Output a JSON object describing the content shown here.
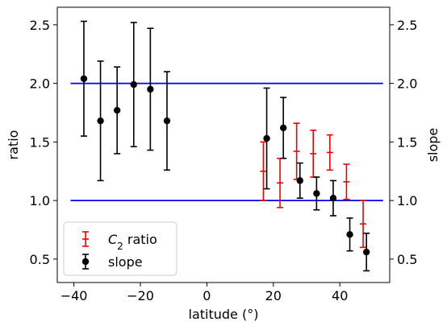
{
  "chart_data": {
    "type": "scatter",
    "xlabel": "latitude (°)",
    "ylabel_left": "ratio",
    "ylabel_right": "slope",
    "xlim": [
      -45,
      55
    ],
    "ylim": [
      0.3,
      2.65
    ],
    "xticks": [
      -40,
      -20,
      0,
      20,
      40
    ],
    "yticks": [
      0.5,
      1.0,
      1.5,
      2.0,
      2.5
    ],
    "xtick_labels": [
      "−40",
      "−20",
      "0",
      "20",
      "40"
    ],
    "ytick_labels": [
      "0.5",
      "1.0",
      "1.5",
      "2.0",
      "2.5"
    ],
    "hlines": [
      {
        "y": 1.0,
        "color": "#0000ee"
      },
      {
        "y": 2.0,
        "color": "#0000ee"
      }
    ],
    "hline_x_range": [
      -41,
      53
    ],
    "legend_position": "lower-left",
    "series": [
      {
        "name": "C₂ ratio",
        "name_parts": {
          "symbol": "C",
          "sub": "2",
          "suffix": " ratio"
        },
        "color": "#ee0000",
        "marker": "errorbar",
        "x": [
          17,
          22,
          27,
          32,
          37,
          42,
          47
        ],
        "y": [
          1.25,
          1.15,
          1.42,
          1.4,
          1.41,
          1.16,
          0.8
        ],
        "err": [
          0.25,
          0.21,
          0.24,
          0.2,
          0.15,
          0.15,
          0.2
        ]
      },
      {
        "name": "slope",
        "color": "#000000",
        "marker": "circle",
        "x": [
          -37,
          -32,
          -27,
          -22,
          -17,
          -12,
          18,
          23,
          28,
          33,
          38,
          43,
          48
        ],
        "y": [
          2.04,
          1.68,
          1.77,
          1.99,
          1.95,
          1.68,
          1.53,
          1.62,
          1.17,
          1.06,
          1.02,
          0.71,
          0.56
        ],
        "err": [
          0.49,
          0.51,
          0.37,
          0.53,
          0.52,
          0.42,
          0.43,
          0.26,
          0.15,
          0.14,
          0.15,
          0.14,
          0.16
        ]
      }
    ]
  }
}
